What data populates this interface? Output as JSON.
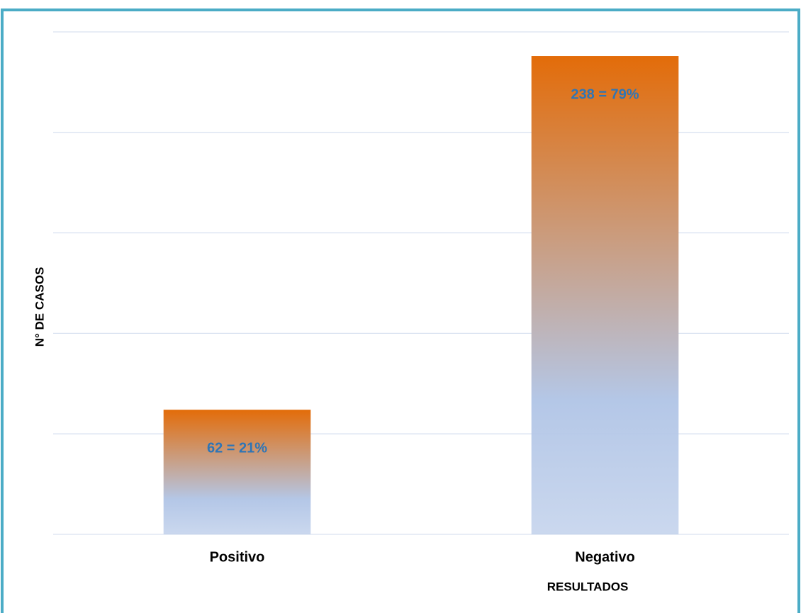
{
  "chart_data": {
    "type": "bar",
    "x_label": "RESULTADOS",
    "y_label": "N° DE CASOS",
    "categories": [
      "Positivo",
      "Negativo"
    ],
    "values": [
      62,
      238
    ],
    "value_labels": [
      "62 = 21%",
      "238 = 79%"
    ],
    "ylim": [
      0,
      250
    ],
    "yticks": [
      0,
      50,
      100,
      150,
      200,
      250
    ],
    "grid": true,
    "colors": {
      "top": "#e36c09",
      "bottom": "#b4c7e7",
      "label": "#2e75b6"
    }
  }
}
